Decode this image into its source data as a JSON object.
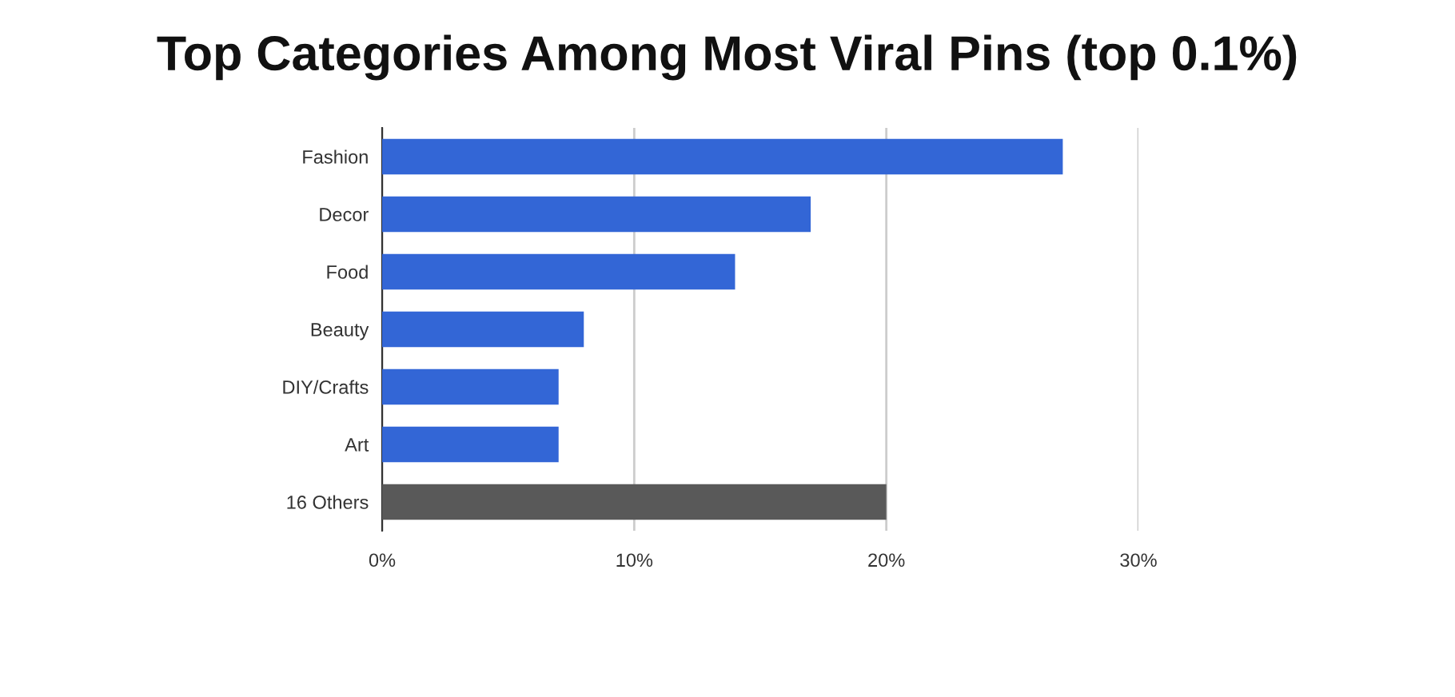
{
  "chart_data": {
    "type": "bar",
    "orientation": "horizontal",
    "title": "Top Categories Among Most Viral Pins (top 0.1%)",
    "categories": [
      "Fashion",
      "Decor",
      "Food",
      "Beauty",
      "DIY/Crafts",
      "Art",
      "16 Others"
    ],
    "values": [
      27,
      17,
      14,
      8,
      7,
      7,
      20
    ],
    "colors": [
      "#3366d6",
      "#3366d6",
      "#3366d6",
      "#3366d6",
      "#3366d6",
      "#3366d6",
      "#595959"
    ],
    "xlim": [
      0,
      30
    ],
    "xticks": [
      {
        "value": 0,
        "label": "0%"
      },
      {
        "value": 10,
        "label": "10%"
      },
      {
        "value": 20,
        "label": "20%"
      },
      {
        "value": 30,
        "label": "30%"
      }
    ],
    "grid": "x"
  }
}
